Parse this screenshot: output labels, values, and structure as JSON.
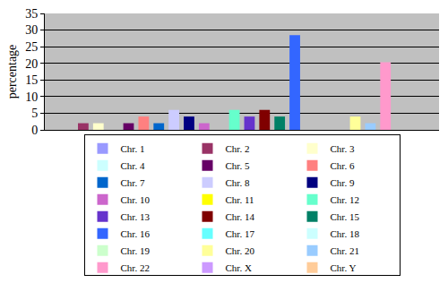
{
  "chart_data": {
    "type": "bar",
    "y_label": "percentage",
    "categories": [
      null
    ],
    "series": [
      {
        "name": "Chr. 1",
        "color": "#9999ff",
        "values": [
          0
        ]
      },
      {
        "name": "Chr. 2",
        "color": "#993366",
        "values": [
          2
        ]
      },
      {
        "name": "Chr. 3",
        "color": "#ffffcc",
        "values": [
          2
        ]
      },
      {
        "name": "Chr. 4",
        "color": "#ccffff",
        "values": [
          0
        ]
      },
      {
        "name": "Chr. 5",
        "color": "#660066",
        "values": [
          2
        ]
      },
      {
        "name": "Chr. 6",
        "color": "#ff8080",
        "values": [
          4
        ]
      },
      {
        "name": "Chr. 7",
        "color": "#0066cc",
        "values": [
          2
        ]
      },
      {
        "name": "Chr. 8",
        "color": "#ccccff",
        "values": [
          6
        ]
      },
      {
        "name": "Chr. 9",
        "color": "#000080",
        "values": [
          4
        ]
      },
      {
        "name": "Chr. 10",
        "color": "#cc66cc",
        "values": [
          2
        ]
      },
      {
        "name": "Chr. 11",
        "color": "#ffff00",
        "values": [
          0
        ]
      },
      {
        "name": "Chr. 12",
        "color": "#66ffcc",
        "values": [
          6
        ]
      },
      {
        "name": "Chr. 13",
        "color": "#6633cc",
        "values": [
          4
        ]
      },
      {
        "name": "Chr. 14",
        "color": "#800000",
        "values": [
          6
        ]
      },
      {
        "name": "Chr. 15",
        "color": "#008066",
        "values": [
          4
        ]
      },
      {
        "name": "Chr. 16",
        "color": "#3366ff",
        "values": [
          28.5
        ]
      },
      {
        "name": "Chr. 17",
        "color": "#66ffff",
        "values": [
          0
        ]
      },
      {
        "name": "Chr. 18",
        "color": "#ccffff",
        "values": [
          0
        ]
      },
      {
        "name": "Chr. 19",
        "color": "#ccffcc",
        "values": [
          0
        ]
      },
      {
        "name": "Chr. 20",
        "color": "#ffff99",
        "values": [
          4
        ]
      },
      {
        "name": "Chr. 21",
        "color": "#99ccff",
        "values": [
          2
        ]
      },
      {
        "name": "Chr. 22",
        "color": "#ff99cc",
        "values": [
          20.3
        ]
      },
      {
        "name": "Chr. X",
        "color": "#cc99ff",
        "values": [
          0
        ]
      },
      {
        "name": "Chr. Y",
        "color": "#ffcc99",
        "values": [
          0
        ]
      }
    ],
    "ylim": [
      0,
      35
    ],
    "yticks": [
      0,
      5,
      10,
      15,
      20,
      25,
      30,
      35
    ],
    "grid": true,
    "legend": "bottom",
    "tick_labels": "y"
  }
}
